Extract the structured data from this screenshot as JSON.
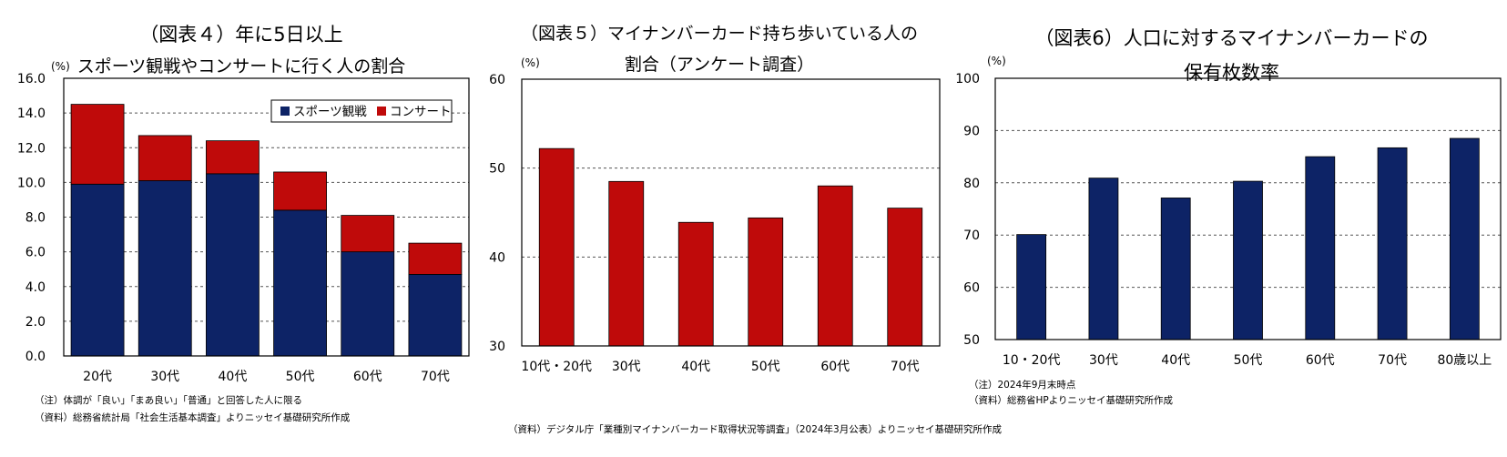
{
  "chart_data": [
    {
      "id": "fig4",
      "type": "bar",
      "stacked": true,
      "title_line1": "（図表４）年に5日以上",
      "title_line2": "スポーツ観戦やコンサートに行く人の割合",
      "unit": "(%)",
      "categories": [
        "20代",
        "30代",
        "40代",
        "50代",
        "60代",
        "70代"
      ],
      "series": [
        {
          "name": "スポーツ観戦",
          "color": "#0d2366",
          "values": [
            9.9,
            10.1,
            10.5,
            8.4,
            6.0,
            4.7
          ]
        },
        {
          "name": "コンサート",
          "color": "#bf0a0a",
          "values": [
            4.6,
            2.6,
            1.9,
            2.2,
            2.1,
            1.8
          ]
        }
      ],
      "ylim": [
        0,
        16
      ],
      "yticks": [
        "0.0",
        "2.0",
        "4.0",
        "6.0",
        "8.0",
        "10.0",
        "12.0",
        "14.0",
        "16.0"
      ],
      "legend_position": "top-right",
      "notes": [
        "（注）体調が「良い」「まあ良い」「普通」と回答した人に限る",
        "（資料）総務省統計局「社会生活基本調査」よりニッセイ基礎研究所作成"
      ]
    },
    {
      "id": "fig5",
      "type": "bar",
      "title_line1": "（図表５）マイナンバーカード持ち歩いている人の",
      "title_line2": "割合（アンケート調査）",
      "unit": "(%)",
      "categories": [
        "10代・20代",
        "30代",
        "40代",
        "50代",
        "60代",
        "70代"
      ],
      "values": [
        52.2,
        48.5,
        43.9,
        44.4,
        48.0,
        45.5
      ],
      "color": "#bf0a0a",
      "ylim": [
        30,
        60
      ],
      "yticks": [
        "30",
        "40",
        "50",
        "60"
      ],
      "notes": [
        "（資料）デジタル庁「業種別マイナンバーカード取得状況等調査」（2024年3月公表）よりニッセイ基礎研究所作成"
      ]
    },
    {
      "id": "fig6",
      "type": "bar",
      "title_line1": "（図表6）人口に対するマイナンバーカードの",
      "title_line2": "保有枚数率",
      "unit": "(%)",
      "categories": [
        "10・20代",
        "30代",
        "40代",
        "50代",
        "60代",
        "70代",
        "80歳以上"
      ],
      "values": [
        70.1,
        80.9,
        77.1,
        80.3,
        85.0,
        86.7,
        88.5
      ],
      "color": "#0d2366",
      "ylim": [
        50,
        100
      ],
      "yticks": [
        "50",
        "60",
        "70",
        "80",
        "90",
        "100"
      ],
      "notes": [
        "（注）2024年9月末時点",
        "（資料）総務省HPよりニッセイ基礎研究所作成"
      ]
    }
  ]
}
